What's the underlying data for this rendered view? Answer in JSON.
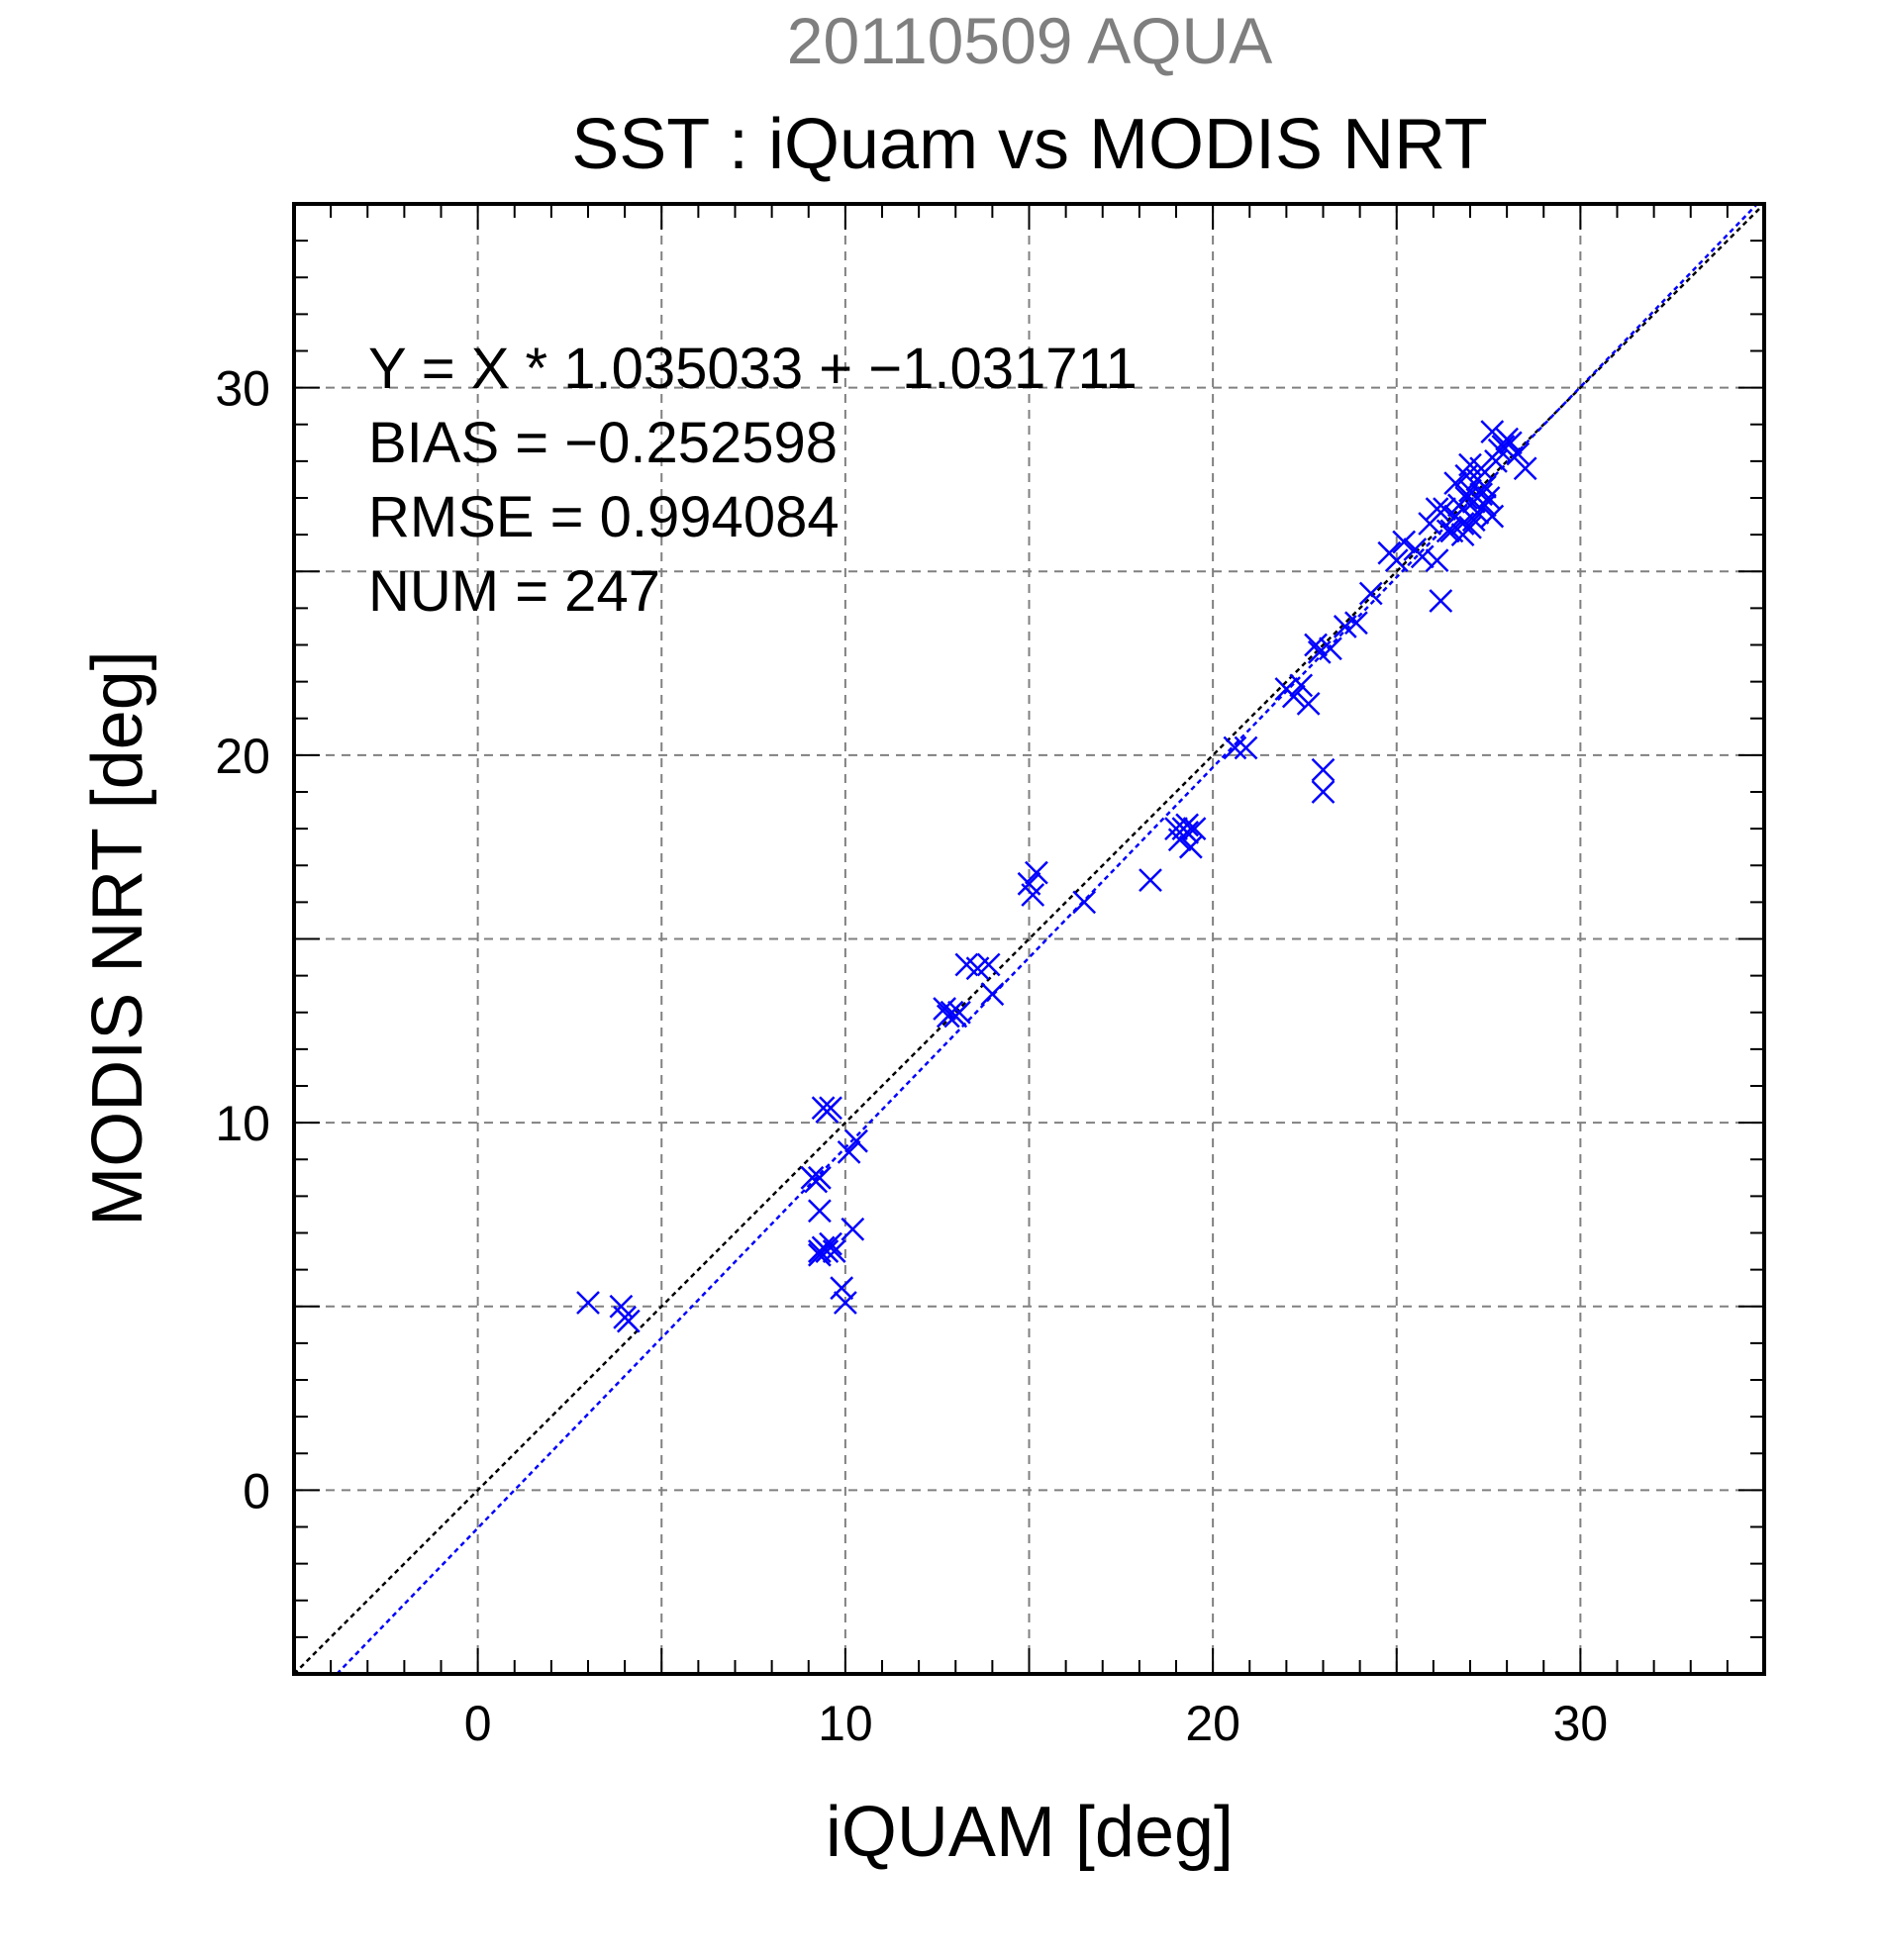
{
  "chart_data": {
    "type": "scatter",
    "suptitle": "20110509 AQUA",
    "title": "SST : iQuam vs MODIS NRT",
    "xlabel": "iQUAM [deg]",
    "ylabel": "MODIS NRT [deg]",
    "xlim": [
      -5,
      35
    ],
    "ylim": [
      -5,
      35
    ],
    "xticks": [
      "0",
      "10",
      "20",
      "30"
    ],
    "yticks": [
      "0",
      "10",
      "20",
      "30"
    ],
    "grid": true,
    "stats": [
      "Y = X * 1.035033 + −1.031711",
      "BIAS = −0.252598",
      "RMSE = 0.994084",
      "NUM = 247"
    ],
    "colors": {
      "points": "#0000ff",
      "fit_line": "#0000ff",
      "one_to_one_line": "#000000",
      "grid": "#808080"
    },
    "fit": {
      "slope": 1.035033,
      "intercept": -1.031711
    },
    "series": [
      {
        "marker": "x",
        "x": [
          3.0,
          3.9,
          4.0,
          4.1,
          9.1,
          9.2,
          9.3,
          9.4,
          9.5,
          9.6,
          9.3,
          9.3,
          9.4,
          9.5,
          9.6,
          9.7,
          9.3,
          9.9,
          10.0,
          10.2,
          10.3,
          10.1,
          12.7,
          12.8,
          12.9,
          13.0,
          13.1,
          13.3,
          13.6,
          13.9,
          14.0,
          15.0,
          15.1,
          15.2,
          16.5,
          18.3,
          19.0,
          19.1,
          19.2,
          19.3,
          19.4,
          19.5,
          19.3,
          20.6,
          20.9,
          22.0,
          22.2,
          22.4,
          22.6,
          22.8,
          23.0,
          23.0,
          22.9,
          23.2,
          23.6,
          23.9,
          24.3,
          24.8,
          25.0,
          25.2,
          25.5,
          25.7,
          25.9,
          26.1,
          26.3,
          26.2,
          26.5,
          26.6,
          26.7,
          26.8,
          26.9,
          27.0,
          27.1,
          27.2,
          27.3,
          27.4,
          27.5,
          27.6,
          27.7,
          27.8,
          28.0,
          28.1,
          28.3,
          28.5,
          27.0,
          27.2,
          27.4,
          26.9,
          27.1,
          27.3,
          27.0,
          26.8,
          27.6,
          27.9,
          26.4,
          26.6,
          26.1
        ],
        "y": [
          5.1,
          5.0,
          4.7,
          4.6,
          8.5,
          8.4,
          8.5,
          10.4,
          10.3,
          10.4,
          7.6,
          6.5,
          6.6,
          6.5,
          6.7,
          6.5,
          6.4,
          5.5,
          5.1,
          7.1,
          9.5,
          9.2,
          13.1,
          12.9,
          13.0,
          12.9,
          13.0,
          14.3,
          14.2,
          14.3,
          13.5,
          16.5,
          16.2,
          16.8,
          16.0,
          16.6,
          18.0,
          17.7,
          18.0,
          17.9,
          17.5,
          18.0,
          18.1,
          20.2,
          20.2,
          21.8,
          21.6,
          21.9,
          21.4,
          23.0,
          19.6,
          19.0,
          22.8,
          22.9,
          23.5,
          23.6,
          24.4,
          25.5,
          25.3,
          25.8,
          25.6,
          25.4,
          26.3,
          25.3,
          26.7,
          24.2,
          26.1,
          26.5,
          26.8,
          26.3,
          27.0,
          27.2,
          26.4,
          27.5,
          27.8,
          26.8,
          27.0,
          26.5,
          28.0,
          28.3,
          28.6,
          28.5,
          28.2,
          27.8,
          26.2,
          26.6,
          27.3,
          27.6,
          26.9,
          27.1,
          27.9,
          26.0,
          28.8,
          28.4,
          26.1,
          27.4,
          26.7
        ]
      }
    ]
  }
}
